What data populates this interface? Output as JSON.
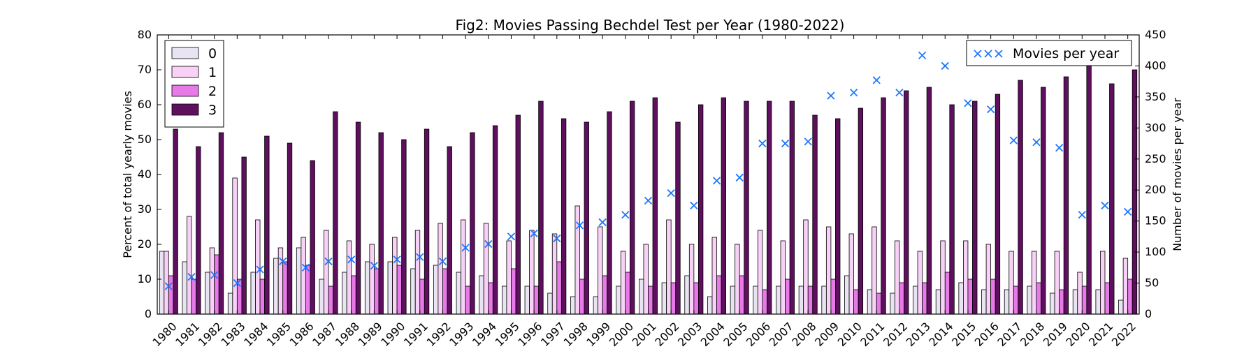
{
  "chart_data": {
    "type": "bar",
    "title": "Fig2: Movies Passing Bechdel Test per Year (1980-2022)",
    "ylabel": "Percent of total yearly movies",
    "y2label": "Number of movies per year",
    "ylim": [
      0,
      80
    ],
    "y2lim": [
      0,
      450
    ],
    "yticks": [
      "0",
      "10",
      "20",
      "30",
      "40",
      "50",
      "60",
      "70",
      "80"
    ],
    "y2ticks": [
      "0",
      "50",
      "100",
      "150",
      "200",
      "250",
      "300",
      "350",
      "400",
      "450"
    ],
    "categories": [
      "1980",
      "1981",
      "1982",
      "1983",
      "1984",
      "1985",
      "1986",
      "1987",
      "1988",
      "1989",
      "1990",
      "1991",
      "1992",
      "1993",
      "1994",
      "1995",
      "1996",
      "1997",
      "1998",
      "1999",
      "2000",
      "2001",
      "2002",
      "2003",
      "2004",
      "2005",
      "2006",
      "2007",
      "2008",
      "2009",
      "2010",
      "2011",
      "2012",
      "2013",
      "2014",
      "2015",
      "2016",
      "2017",
      "2018",
      "2019",
      "2020",
      "2021",
      "2022"
    ],
    "series": [
      {
        "name": "0",
        "color": "#e8e4f2",
        "values": [
          18,
          15,
          12,
          6,
          12,
          16,
          19,
          10,
          12,
          15,
          15,
          13,
          14,
          12,
          11,
          8,
          8,
          6,
          5,
          5,
          8,
          10,
          9,
          11,
          5,
          8,
          8,
          8,
          8,
          8,
          11,
          7,
          6,
          8,
          7,
          9,
          7,
          7,
          8,
          6,
          7,
          7,
          4
        ]
      },
      {
        "name": "1",
        "color": "#f8d1f6",
        "values": [
          18,
          28,
          19,
          39,
          27,
          19,
          22,
          24,
          21,
          20,
          22,
          24,
          26,
          27,
          26,
          21,
          24,
          23,
          31,
          25,
          18,
          20,
          27,
          20,
          22,
          20,
          24,
          21,
          27,
          25,
          23,
          25,
          21,
          18,
          21,
          21,
          20,
          18,
          18,
          18,
          12,
          18,
          16
        ]
      },
      {
        "name": "2",
        "color": "#e879e8",
        "values": [
          11,
          10,
          17,
          10,
          10,
          15,
          14,
          8,
          11,
          13,
          14,
          10,
          13,
          8,
          9,
          13,
          8,
          15,
          10,
          11,
          12,
          8,
          9,
          9,
          11,
          11,
          7,
          10,
          8,
          10,
          7,
          6,
          9,
          9,
          12,
          10,
          10,
          8,
          9,
          7,
          8,
          9,
          10
        ]
      },
      {
        "name": "3",
        "color": "#5e0f5e",
        "values": [
          53,
          48,
          52,
          45,
          51,
          49,
          44,
          58,
          55,
          52,
          50,
          53,
          48,
          52,
          54,
          57,
          61,
          56,
          55,
          58,
          61,
          62,
          55,
          60,
          62,
          61,
          61,
          61,
          57,
          56,
          59,
          62,
          64,
          65,
          60,
          61,
          63,
          67,
          65,
          68,
          72,
          66,
          70
        ]
      }
    ],
    "movies_per_year": {
      "name": "Movies per year",
      "marker": "x",
      "color": "#1f77ff",
      "values": [
        45,
        60,
        63,
        50,
        72,
        85,
        75,
        85,
        88,
        78,
        88,
        92,
        85,
        107,
        113,
        125,
        130,
        122,
        143,
        148,
        160,
        183,
        195,
        175,
        215,
        220,
        275,
        275,
        278,
        352,
        357,
        377,
        357,
        417,
        400,
        340,
        330,
        280,
        277,
        268,
        160,
        175,
        165
      ]
    },
    "legend": {
      "placement": "top-left"
    },
    "legend2": {
      "placement": "top-right"
    },
    "grid": false
  }
}
